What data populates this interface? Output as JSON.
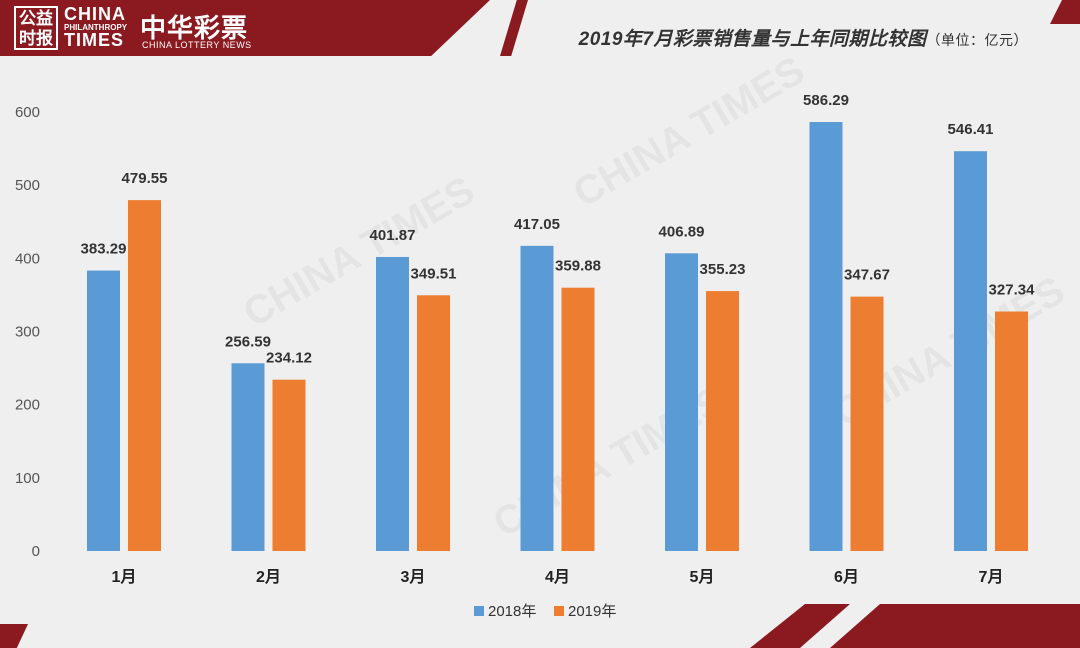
{
  "header": {
    "seal_text": "公益\n时报",
    "logo_main": "CHINA",
    "logo_sub": "PHILANTHROPY",
    "logo_times": "TIMES",
    "brand_cn": "中华彩票",
    "brand_en": "CHINA LOTTERY NEWS"
  },
  "title": {
    "main": "2019年7月彩票销售量与上年同期比较图",
    "unit": "（单位：亿元）"
  },
  "colors": {
    "series_2018": "#5b9bd5",
    "series_2019": "#ed7d31",
    "brand_red": "#8b1a20"
  },
  "chart_data": {
    "type": "bar",
    "categories": [
      "1月",
      "2月",
      "3月",
      "4月",
      "5月",
      "6月",
      "7月"
    ],
    "series": [
      {
        "name": "2018年",
        "values": [
          383.29,
          256.59,
          401.87,
          417.05,
          406.89,
          586.29,
          546.41
        ]
      },
      {
        "name": "2019年",
        "values": [
          479.55,
          234.12,
          349.51,
          359.88,
          355.23,
          347.67,
          327.34
        ]
      }
    ],
    "yticks": [
      "0",
      "100",
      "200",
      "300",
      "400",
      "500",
      "600"
    ],
    "ylim": [
      0,
      600
    ],
    "grid": false,
    "legend_position": "bottom-center"
  }
}
